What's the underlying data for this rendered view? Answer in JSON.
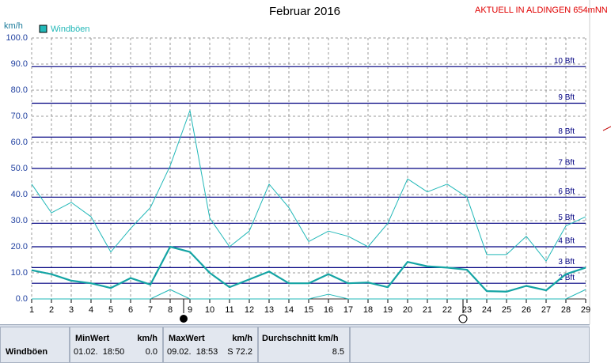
{
  "chart_data": {
    "type": "line",
    "title": "Februar 2016",
    "y_label": "km/h",
    "x": [
      1,
      2,
      3,
      4,
      5,
      6,
      7,
      8,
      9,
      10,
      11,
      12,
      13,
      14,
      15,
      16,
      17,
      18,
      19,
      20,
      21,
      22,
      23,
      24,
      25,
      26,
      27,
      28,
      29
    ],
    "xlim": [
      1,
      29
    ],
    "xticks": [
      1,
      2,
      3,
      4,
      5,
      6,
      7,
      8,
      9,
      10,
      11,
      12,
      13,
      14,
      15,
      16,
      17,
      18,
      19,
      20,
      21,
      22,
      23,
      24,
      25,
      26,
      27,
      28,
      29
    ],
    "ylim": [
      0,
      100
    ],
    "yticks": [
      {
        "value": 0,
        "label": "0.0"
      },
      {
        "value": 10,
        "label": "10.0"
      },
      {
        "value": 20,
        "label": "20.0"
      },
      {
        "value": 30,
        "label": "30.0"
      },
      {
        "value": 40,
        "label": "40.0"
      },
      {
        "value": 50,
        "label": "50.0"
      },
      {
        "value": 60,
        "label": "60.0"
      },
      {
        "value": 70,
        "label": "70.0"
      },
      {
        "value": 80,
        "label": "80.0"
      },
      {
        "value": 90,
        "label": "90.0"
      },
      {
        "value": 100,
        "label": "100.0"
      }
    ],
    "grid": true,
    "legend": "top-left",
    "series": [
      {
        "name": "Windböen",
        "color": "#22b8b8",
        "line_width": 1,
        "values": [
          44,
          33,
          37,
          31.5,
          18,
          27,
          35,
          51,
          72.2,
          31,
          20,
          26,
          44,
          35,
          22,
          26,
          24,
          20,
          29,
          46,
          41,
          44,
          39,
          17,
          17,
          24,
          14.5,
          28,
          31.5
        ]
      },
      {
        "color": "#14a4a4",
        "line_width": 2.2,
        "values": [
          11,
          9.5,
          7,
          6,
          4.2,
          8,
          5.5,
          20,
          18,
          10,
          4.5,
          7.5,
          10.5,
          6,
          6,
          9.5,
          6,
          6.3,
          4.5,
          14.2,
          12.5,
          12,
          11.2,
          3,
          2.8,
          5,
          3.3,
          9.5,
          12
        ]
      },
      {
        "color": "#22b8b8",
        "line_width": 1,
        "values": [
          0,
          0,
          0,
          0,
          0,
          0,
          0,
          3.6,
          0,
          0,
          0,
          0,
          0,
          0,
          0,
          1.8,
          0,
          0,
          0,
          0,
          0,
          0,
          0,
          0,
          0,
          0,
          0,
          0,
          3.6
        ]
      }
    ],
    "bft_lines": [
      {
        "value": 6,
        "label": "2 Bft"
      },
      {
        "value": 12,
        "label": "3 Bft"
      },
      {
        "value": 20,
        "label": "4 Bft"
      },
      {
        "value": 29,
        "label": "5 Bft"
      },
      {
        "value": 39,
        "label": "6 Bft"
      },
      {
        "value": 50,
        "label": "7 Bft"
      },
      {
        "value": 62,
        "label": "8 Bft"
      },
      {
        "value": 75,
        "label": "9 Bft"
      },
      {
        "value": 89,
        "label": "10 Bft"
      }
    ],
    "bft_color": "#000080"
  },
  "header": {
    "station": "AKTUELL IN ALDINGEN 654mNN"
  },
  "summary": {
    "row_label": "Windböen",
    "min": {
      "title": "MinWert",
      "unit": "km/h",
      "time": "01.02.  18:50",
      "value": "0.0"
    },
    "max": {
      "title": "MaxWert",
      "unit": "km/h",
      "time": "09.02.  18:53",
      "value": "S 72.2"
    },
    "avg": {
      "title": "Durchschnitt km/h",
      "value": "8.5"
    }
  }
}
